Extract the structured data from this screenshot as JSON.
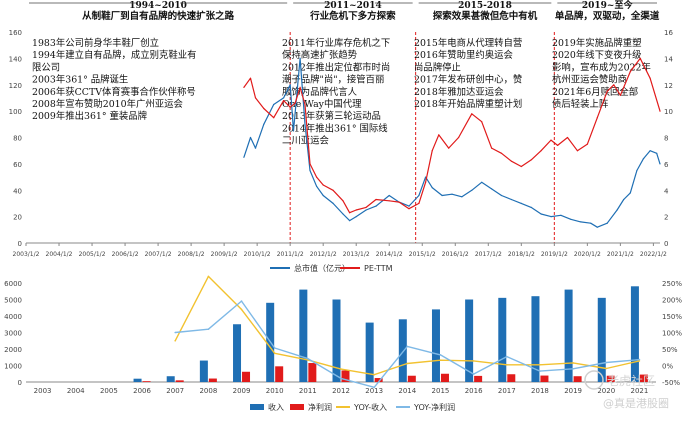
{
  "chart_data": [
    {
      "type": "line",
      "phases": [
        {
          "period": "1994~2010",
          "title": "从制鞋厂到自有品牌的快速扩张之路",
          "start": 2003.0,
          "end": 2011.0
        },
        {
          "period": "2011~2014",
          "title": "行业危机下多方探索",
          "start": 2011.0,
          "end": 2014.8
        },
        {
          "period": "2015-2018",
          "title": "探索效果甚微但危中有机",
          "start": 2014.8,
          "end": 2019.0
        },
        {
          "period": "2019~至今",
          "title": "单品牌，双驱动，全渠道",
          "start": 2019.0,
          "end": 2022.2
        }
      ],
      "annotations": [
        {
          "phase": 0,
          "lines": [
            "1983年公司前身华丰鞋厂创立",
            "1994年建立自有品牌，成立别克鞋业有",
            "限公司",
            "2003年361° 品牌诞生",
            "2006年获CCTV体育赛事合作伙伴称号",
            "2008年宣布赞助2010年广州亚运会",
            "2009年推出361° 童装品牌"
          ]
        },
        {
          "phase": 1,
          "lines": [
            "2011年行业库存危机之下",
            "保持高速扩张趋势",
            "2012年推出定位都市时尚",
            "潮子品牌\"尚\"，接管百丽",
            "服饰为品牌代言人",
            "One Way中国代理",
            "2013年获第三轮运动品",
            "2014年推出361° 国际线",
            "二川亚运会"
          ]
        },
        {
          "phase": 2,
          "lines": [
            "2015年电商从代理转自营",
            "2016年赞助里约奥运会",
            "尚品牌停止",
            "2017年发布研创中心，赞",
            "2018年雅加达亚运会",
            "2018年开始品牌重塑计划"
          ]
        },
        {
          "phase": 3,
          "lines": [
            "2019年实施品牌重塑",
            "2020年线下变夜升级",
            "影响，宣布成为2022年",
            "杭州亚运会赞助商",
            "2021年6月赎回全部",
            "债后轻装上阵"
          ]
        }
      ],
      "x_ticks": [
        "2003/1/2",
        "2004/1/2",
        "2005/1/2",
        "2006/1/2",
        "2007/1/2",
        "2008/1/2",
        "2009/1/2",
        "2010/1/2",
        "2011/1/2",
        "2012/1/2",
        "2013/1/2",
        "2014/1/2",
        "2015/1/2",
        "2016/1/2",
        "2017/1/2",
        "2018/1/2",
        "2019/1/2",
        "2020/1/2",
        "2021/1/2",
        "2022/1/2"
      ],
      "y_left_ticks": [
        "0",
        "20",
        "40",
        "60",
        "80",
        "100",
        "120",
        "140",
        "160"
      ],
      "y_right_ticks": [
        "0",
        "2",
        "4",
        "6",
        "8",
        "10",
        "12",
        "14",
        "16"
      ],
      "ylim_left": [
        0,
        160
      ],
      "ylim_right": [
        0,
        16
      ],
      "series": [
        {
          "name": "总市值（亿元）",
          "axis": "right",
          "color": "#1f6fb4",
          "points": [
            [
              2009.6,
              6.5
            ],
            [
              2009.8,
              8.0
            ],
            [
              2009.95,
              7.2
            ],
            [
              2010.2,
              9.0
            ],
            [
              2010.5,
              10.5
            ],
            [
              2010.8,
              11.0
            ],
            [
              2011.0,
              12.0
            ],
            [
              2011.1,
              8.5
            ],
            [
              2011.3,
              14.0
            ],
            [
              2011.45,
              9.0
            ],
            [
              2011.6,
              5.5
            ],
            [
              2011.8,
              4.3
            ],
            [
              2012.0,
              3.6
            ],
            [
              2012.3,
              3.0
            ],
            [
              2012.6,
              2.2
            ],
            [
              2012.8,
              1.7
            ],
            [
              2013.0,
              2.0
            ],
            [
              2013.3,
              2.5
            ],
            [
              2013.6,
              2.8
            ],
            [
              2014.0,
              3.6
            ],
            [
              2014.3,
              3.1
            ],
            [
              2014.6,
              2.8
            ],
            [
              2014.9,
              3.6
            ],
            [
              2015.1,
              5.0
            ],
            [
              2015.3,
              4.2
            ],
            [
              2015.6,
              3.6
            ],
            [
              2015.9,
              3.7
            ],
            [
              2016.2,
              3.5
            ],
            [
              2016.5,
              4.0
            ],
            [
              2016.8,
              4.6
            ],
            [
              2017.1,
              4.1
            ],
            [
              2017.4,
              3.6
            ],
            [
              2017.7,
              3.3
            ],
            [
              2018.0,
              3.0
            ],
            [
              2018.3,
              2.7
            ],
            [
              2018.6,
              2.2
            ],
            [
              2018.9,
              2.0
            ],
            [
              2019.2,
              2.1
            ],
            [
              2019.5,
              1.8
            ],
            [
              2019.8,
              1.6
            ],
            [
              2020.1,
              1.5
            ],
            [
              2020.3,
              1.2
            ],
            [
              2020.6,
              1.5
            ],
            [
              2020.9,
              2.5
            ],
            [
              2021.1,
              3.3
            ],
            [
              2021.3,
              3.8
            ],
            [
              2021.5,
              5.5
            ],
            [
              2021.7,
              6.4
            ],
            [
              2021.9,
              7.0
            ],
            [
              2022.1,
              6.8
            ],
            [
              2022.2,
              6.0
            ]
          ]
        },
        {
          "name": "PE-TTM",
          "axis": "left",
          "color": "#e11b1b",
          "points": [
            [
              2009.6,
              118
            ],
            [
              2009.8,
              125
            ],
            [
              2009.95,
              110
            ],
            [
              2010.2,
              102
            ],
            [
              2010.5,
              95
            ],
            [
              2010.8,
              108
            ],
            [
              2011.0,
              103
            ],
            [
              2011.15,
              106
            ],
            [
              2011.3,
              118
            ],
            [
              2011.45,
              105
            ],
            [
              2011.6,
              60
            ],
            [
              2011.8,
              50
            ],
            [
              2012.0,
              44
            ],
            [
              2012.3,
              40
            ],
            [
              2012.6,
              32
            ],
            [
              2012.8,
              23
            ],
            [
              2013.0,
              25
            ],
            [
              2013.3,
              27
            ],
            [
              2013.6,
              33
            ],
            [
              2014.0,
              32
            ],
            [
              2014.3,
              31
            ],
            [
              2014.6,
              26
            ],
            [
              2014.9,
              30
            ],
            [
              2015.1,
              46
            ],
            [
              2015.3,
              70
            ],
            [
              2015.5,
              82
            ],
            [
              2015.8,
              72
            ],
            [
              2016.1,
              80
            ],
            [
              2016.5,
              98
            ],
            [
              2016.8,
              92
            ],
            [
              2017.1,
              72
            ],
            [
              2017.4,
              68
            ],
            [
              2017.7,
              62
            ],
            [
              2018.0,
              58
            ],
            [
              2018.3,
              63
            ],
            [
              2018.6,
              70
            ],
            [
              2018.9,
              78
            ],
            [
              2019.1,
              74
            ],
            [
              2019.4,
              80
            ],
            [
              2019.7,
              70
            ],
            [
              2020.0,
              75
            ],
            [
              2020.3,
              95
            ],
            [
              2020.6,
              115
            ],
            [
              2020.8,
              120
            ],
            [
              2021.0,
              112
            ],
            [
              2021.3,
              130
            ],
            [
              2021.6,
              140
            ],
            [
              2021.9,
              125
            ],
            [
              2022.2,
              100
            ]
          ]
        }
      ]
    },
    {
      "type": "bar",
      "categories": [
        "2003",
        "2004",
        "2005",
        "2006",
        "2007",
        "2008",
        "2009",
        "2010",
        "2011",
        "2012",
        "2013",
        "2014",
        "2015",
        "2016",
        "2017",
        "2018",
        "2019",
        "2020",
        "2021"
      ],
      "y_left_ticks": [
        "0",
        "1000",
        "2000",
        "3000",
        "4000",
        "5000",
        "6000"
      ],
      "y_right_ticks": [
        "-50%",
        "0%",
        "50%",
        "100%",
        "150%",
        "200%",
        "250%"
      ],
      "ylim_left": [
        0,
        6000
      ],
      "ylim_right": [
        -50,
        250
      ],
      "series": [
        {
          "name": "收入",
          "kind": "bar",
          "color": "#1f6fb4",
          "values": [
            0,
            0,
            0,
            200,
            350,
            1300,
            3500,
            4800,
            5600,
            5000,
            3600,
            3800,
            4400,
            5000,
            5100,
            5200,
            5600,
            5100,
            5800
          ]
        },
        {
          "name": "净利润",
          "kind": "bar",
          "color": "#e11b1b",
          "values": [
            0,
            0,
            0,
            50,
            100,
            210,
            620,
            950,
            1150,
            700,
            240,
            380,
            500,
            370,
            470,
            390,
            350,
            380,
            450
          ]
        },
        {
          "name": "YOY-收入",
          "kind": "line",
          "color": "#f2c230",
          "values": [
            null,
            null,
            null,
            null,
            75,
            270,
            170,
            37,
            17,
            -11,
            -28,
            6,
            16,
            14,
            2,
            2,
            8,
            -9,
            14
          ]
        },
        {
          "name": "YOY-净利润",
          "kind": "line",
          "color": "#7fb9e6",
          "values": [
            null,
            null,
            null,
            null,
            100,
            110,
            195,
            53,
            21,
            -39,
            -66,
            58,
            32,
            -26,
            27,
            -17,
            -10,
            9,
            18
          ]
        }
      ]
    }
  ],
  "watermark": {
    "text_top": "老虎社区",
    "text_bottom": "@真是港股圈"
  }
}
